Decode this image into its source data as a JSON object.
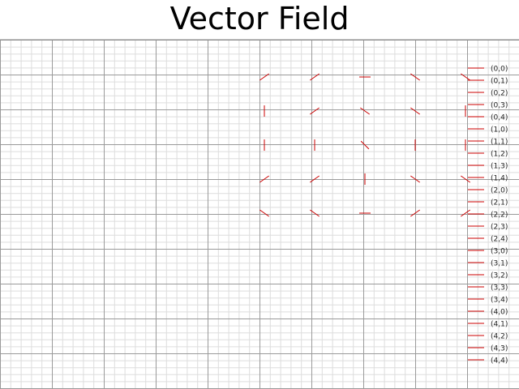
{
  "chart_data": {
    "type": "quiver",
    "title": "Vector Field",
    "xlabel": "",
    "ylabel": "",
    "grid": true,
    "grid_minor": true,
    "legend_position": "right",
    "arrow_color": "#cc0000",
    "x": [
      0,
      1,
      2,
      3,
      4
    ],
    "y": [
      0,
      1,
      2,
      3,
      4
    ],
    "angles_deg": [
      [
        -35,
        -35,
        0,
        35,
        35
      ],
      [
        -90,
        -35,
        35,
        35,
        90
      ],
      [
        -90,
        -90,
        45,
        90,
        90
      ],
      [
        -35,
        -35,
        90,
        35,
        35
      ],
      [
        35,
        35,
        0,
        -35,
        -35
      ]
    ],
    "legend_entries": [
      "(0,0)",
      "(0,1)",
      "(0,2)",
      "(0,3)",
      "(0,4)",
      "(1,0)",
      "(1,1)",
      "(1,2)",
      "(1,3)",
      "(1,4)",
      "(2,0)",
      "(2,1)",
      "(2,2)",
      "(2,3)",
      "(2,4)",
      "(3,0)",
      "(3,1)",
      "(3,2)",
      "(3,3)",
      "(3,4)",
      "(4,0)",
      "(4,1)",
      "(4,2)",
      "(4,3)",
      "(4,4)"
    ]
  }
}
